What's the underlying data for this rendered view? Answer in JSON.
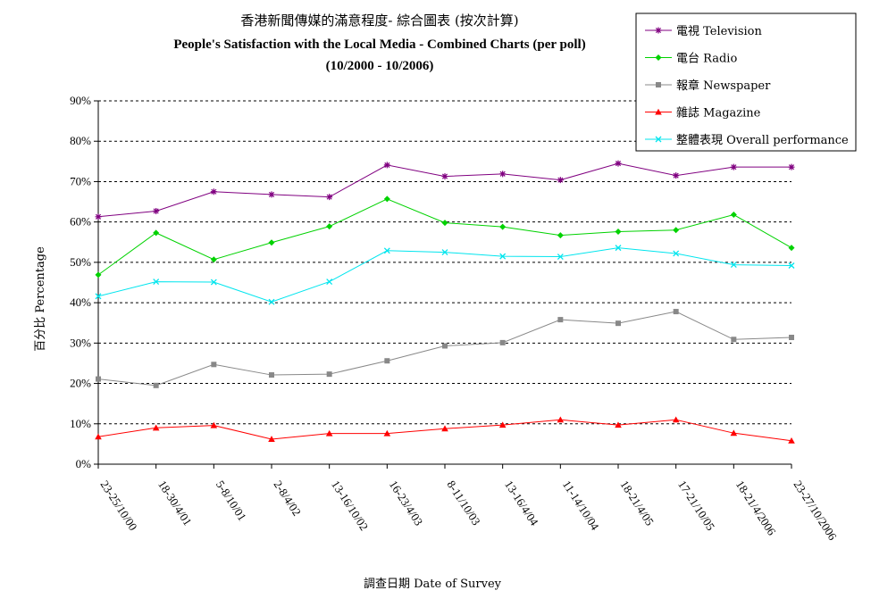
{
  "chart_data": {
    "type": "line",
    "title": "香港新聞傳媒的滿意程度- 綜合圖表 (按次計算)",
    "subtitle": "People's Satisfaction with the Local Media - Combined Charts (per poll)",
    "period": "(10/2000 - 10/2006)",
    "xlabel": "調查日期 Date of Survey",
    "ylabel": "百分比 Percentage",
    "ylim": [
      0,
      90
    ],
    "yticks": [
      "0%",
      "10%",
      "20%",
      "30%",
      "40%",
      "50%",
      "60%",
      "70%",
      "80%",
      "90%"
    ],
    "grid": true,
    "legend_position": "top-right",
    "categories": [
      "23-25/10/00",
      "18-30/4/01",
      "5-8/10/01",
      "2-8/4/02",
      "13-16/10/02",
      "16-23/4/03",
      "8-11/10/03",
      "13-16/4/04",
      "11-14/10/04",
      "18-21/4/05",
      "17-21/10/05",
      "18-21/4/2006",
      "23-27/10/2006"
    ],
    "series": [
      {
        "name": "電視 Television",
        "color": "#800080",
        "marker": "star",
        "values": [
          61.3,
          62.7,
          67.5,
          66.8,
          66.2,
          74.1,
          71.3,
          71.9,
          70.4,
          74.5,
          71.5,
          73.6,
          73.6
        ]
      },
      {
        "name": "電台 Radio",
        "color": "#00d200",
        "marker": "diamond",
        "values": [
          46.9,
          57.3,
          50.7,
          54.9,
          58.9,
          65.7,
          59.8,
          58.8,
          56.7,
          57.6,
          58.0,
          61.8,
          53.6
        ]
      },
      {
        "name": "報章 Newspaper",
        "color": "#888888",
        "marker": "square",
        "values": [
          21.1,
          19.5,
          24.7,
          22.1,
          22.3,
          25.6,
          29.3,
          30.1,
          35.8,
          34.9,
          37.8,
          30.9,
          31.4
        ]
      },
      {
        "name": "雜誌 Magazine",
        "color": "#ff0000",
        "marker": "triangle",
        "values": [
          6.8,
          9.0,
          9.6,
          6.2,
          7.6,
          7.6,
          8.8,
          9.7,
          11.0,
          9.7,
          11.0,
          7.7,
          5.8
        ]
      },
      {
        "name": "整體表現 Overall performance",
        "color": "#00e5ee",
        "marker": "x",
        "values": [
          41.6,
          45.2,
          45.1,
          40.2,
          45.2,
          52.9,
          52.5,
          51.5,
          51.4,
          53.6,
          52.2,
          49.4,
          49.2
        ]
      }
    ]
  }
}
